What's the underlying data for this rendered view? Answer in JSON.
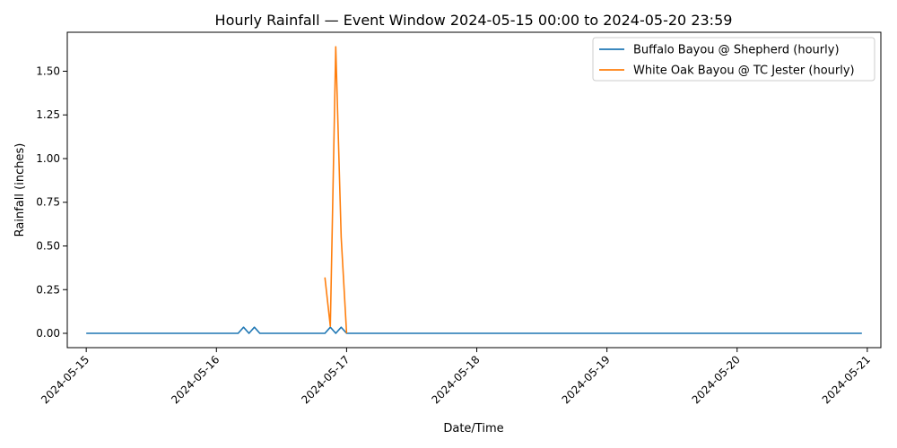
{
  "chart_data": {
    "type": "line",
    "title": "Hourly Rainfall — Event Window 2024-05-15 00:00 to 2024-05-20 23:59",
    "xlabel": "Date/Time",
    "ylabel": "Rainfall (inches)",
    "x_range_hours": [
      -3.5,
      146.5
    ],
    "ylim": [
      -0.082,
      1.723
    ],
    "x_ticks": [
      {
        "hour": 0,
        "label": "2024-05-15"
      },
      {
        "hour": 24,
        "label": "2024-05-16"
      },
      {
        "hour": 48,
        "label": "2024-05-17"
      },
      {
        "hour": 72,
        "label": "2024-05-18"
      },
      {
        "hour": 96,
        "label": "2024-05-19"
      },
      {
        "hour": 120,
        "label": "2024-05-20"
      },
      {
        "hour": 144,
        "label": "2024-05-21"
      }
    ],
    "y_ticks": [
      0.0,
      0.25,
      0.5,
      0.75,
      1.0,
      1.25,
      1.5
    ],
    "y_tick_labels": [
      "0.00",
      "0.25",
      "0.50",
      "0.75",
      "1.00",
      "1.25",
      "1.50"
    ],
    "legend_position": "top-right",
    "grid": false,
    "series": [
      {
        "name": "Buffalo Bayou @ Shepherd (hourly)",
        "color": "#1f77b4",
        "points": [
          [
            0,
            0
          ],
          [
            28,
            0
          ],
          [
            29,
            0.035
          ],
          [
            30,
            0
          ],
          [
            31,
            0.035
          ],
          [
            32,
            0
          ],
          [
            44,
            0
          ],
          [
            45,
            0.035
          ],
          [
            46,
            0
          ],
          [
            47,
            0.035
          ],
          [
            48,
            0
          ],
          [
            143,
            0
          ]
        ]
      },
      {
        "name": "White Oak Bayou @ TC Jester (hourly)",
        "color": "#ff7f0e",
        "points": [
          [
            44,
            0.32
          ],
          [
            45,
            0.04
          ],
          [
            46,
            1.64
          ],
          [
            47,
            0.55
          ],
          [
            48,
            0
          ]
        ]
      }
    ]
  }
}
